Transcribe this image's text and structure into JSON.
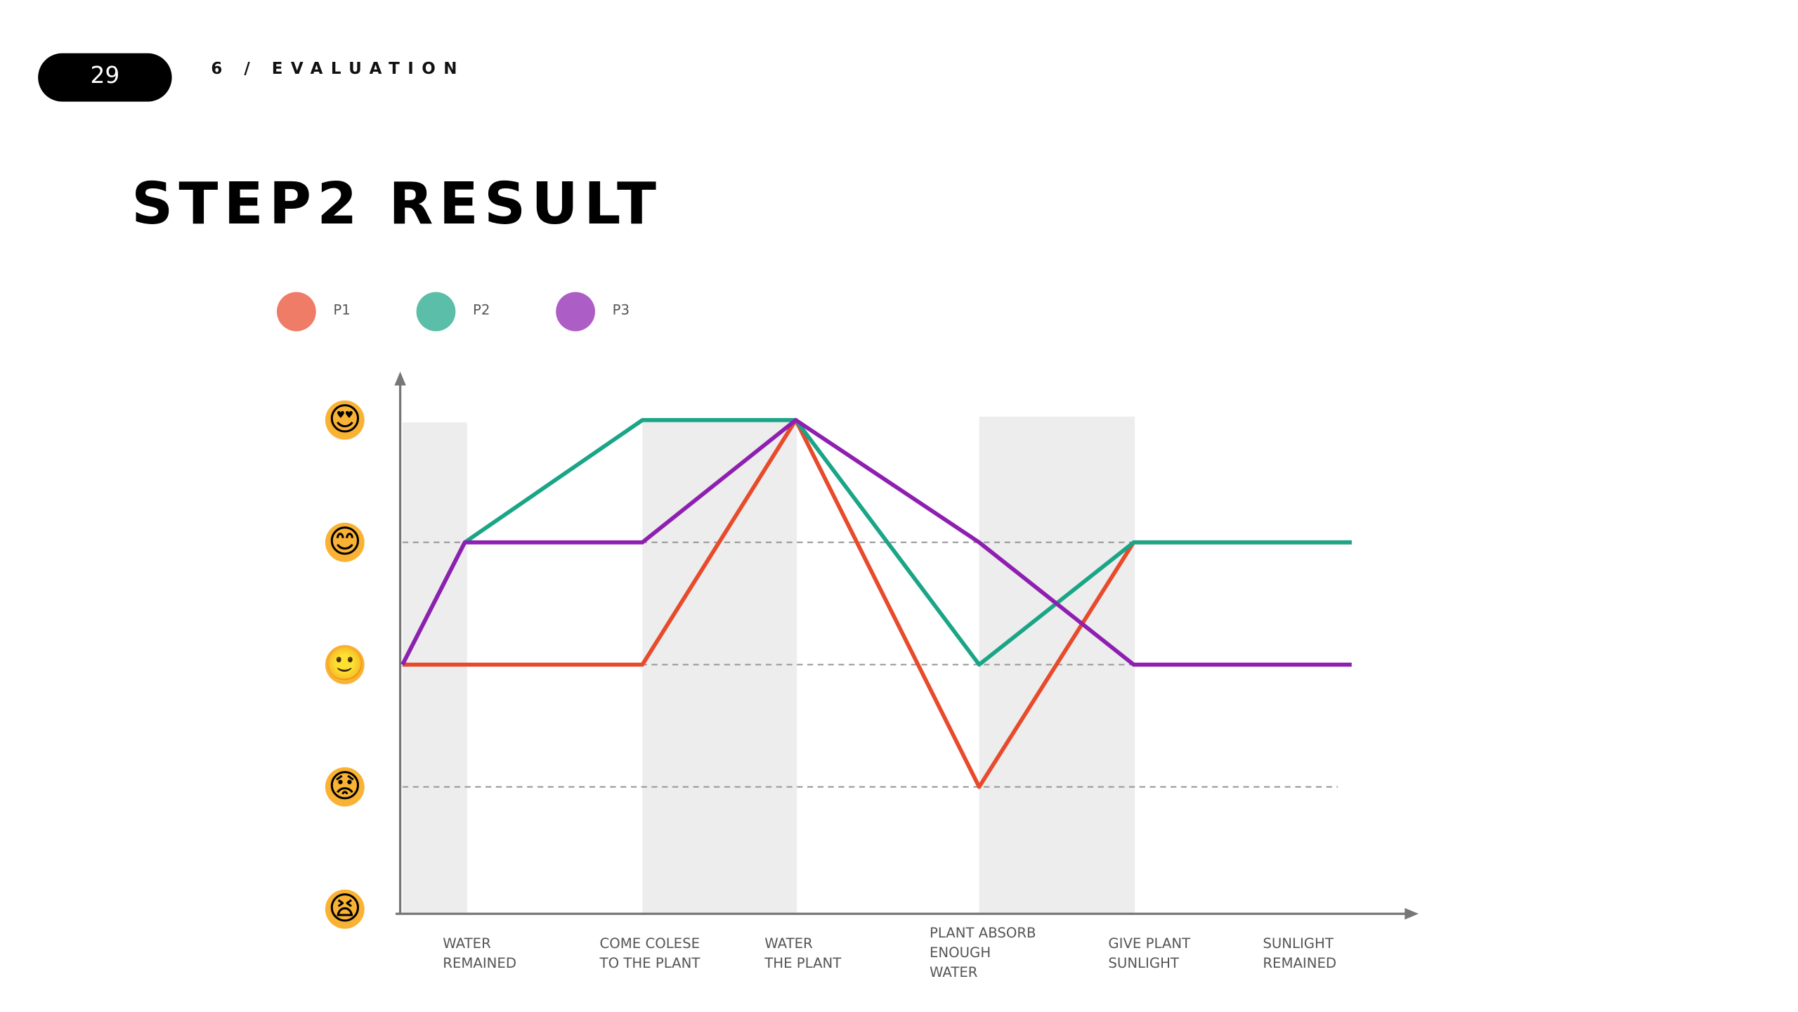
{
  "slide_number": "29",
  "section": "6 / EVALUATION",
  "chart_data": {
    "type": "line",
    "title": "STEP2 RESULT",
    "categories": [
      null,
      [
        "WATER",
        "REMAINED"
      ],
      [
        "COME COLESE",
        "TO THE PLANT"
      ],
      [
        "WATER",
        "THE PLANT"
      ],
      [
        "PLANT ABSORB",
        "ENOUGH",
        "WATER"
      ],
      [
        "GIVE PLANT",
        "SUNLIGHT"
      ],
      [
        "SUNLIGHT",
        "REMAINED"
      ]
    ],
    "series": [
      {
        "name": "P1",
        "color": "#e84a2c",
        "values": [
          3,
          3,
          3,
          5,
          2,
          4,
          4
        ]
      },
      {
        "name": "P2",
        "color": "#1aa587",
        "values": [
          3,
          4,
          5,
          5,
          3,
          4,
          4
        ]
      },
      {
        "name": "P3",
        "color": "#8e1fb0",
        "values": [
          3,
          4,
          4,
          5,
          4,
          3,
          3
        ]
      }
    ],
    "ylim": [
      1,
      5
    ],
    "yticks": [
      {
        "value": 1,
        "label": "😫"
      },
      {
        "value": 2,
        "label": "😟"
      },
      {
        "value": 3,
        "label": "🙂"
      },
      {
        "value": 4,
        "label": "😊"
      },
      {
        "value": 5,
        "label": "😍"
      }
    ],
    "grid": true
  }
}
